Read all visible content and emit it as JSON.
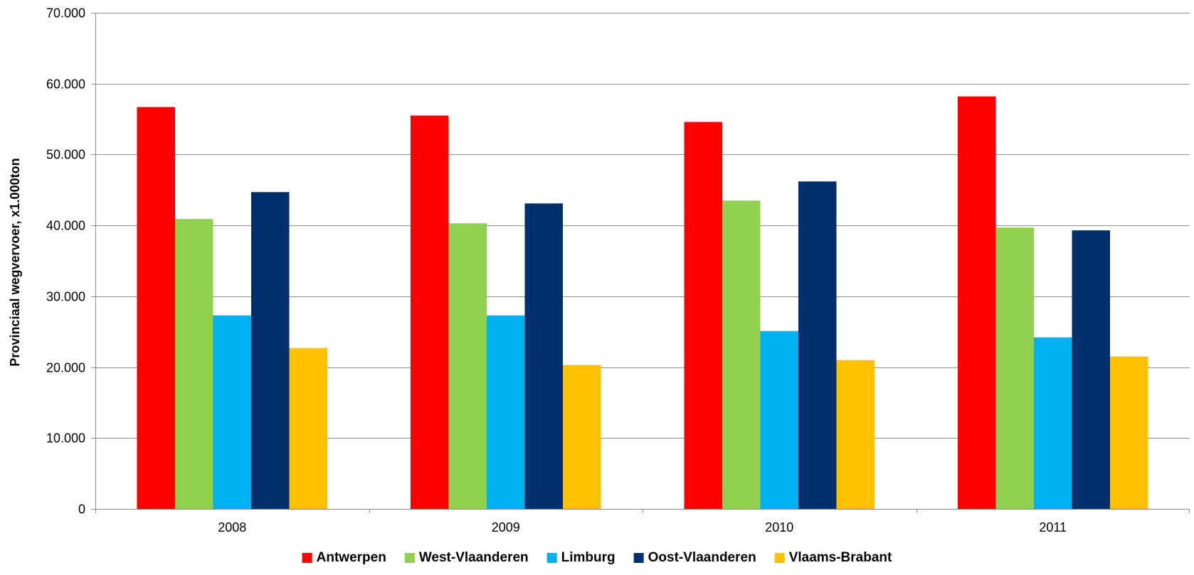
{
  "chart_data": {
    "type": "bar",
    "title": "",
    "xlabel": "",
    "ylabel": "Provinciaal wegvervoer, x1.000ton",
    "ylim": [
      0,
      70000
    ],
    "yticks": [
      0,
      10000,
      20000,
      30000,
      40000,
      50000,
      60000,
      70000
    ],
    "ytick_labels": [
      "0",
      "10.000",
      "20.000",
      "30.000",
      "40.000",
      "50.000",
      "60.000",
      "70.000"
    ],
    "categories": [
      "2008",
      "2009",
      "2010",
      "2011"
    ],
    "grid": "horizontal",
    "legend_position": "bottom",
    "series": [
      {
        "name": "Antwerpen",
        "color": "#ff0000",
        "values": [
          56700,
          55500,
          54600,
          58200
        ]
      },
      {
        "name": "West-Vlaanderen",
        "color": "#92d050",
        "values": [
          40900,
          40300,
          43500,
          39700
        ]
      },
      {
        "name": "Limburg",
        "color": "#00b0f0",
        "values": [
          27300,
          27300,
          25100,
          24200
        ]
      },
      {
        "name": "Oost-Vlaanderen",
        "color": "#002f6c",
        "values": [
          44700,
          43100,
          46200,
          39300
        ]
      },
      {
        "name": "Vlaams-Brabant",
        "color": "#ffc000",
        "values": [
          22700,
          20300,
          21000,
          21500
        ]
      }
    ]
  }
}
